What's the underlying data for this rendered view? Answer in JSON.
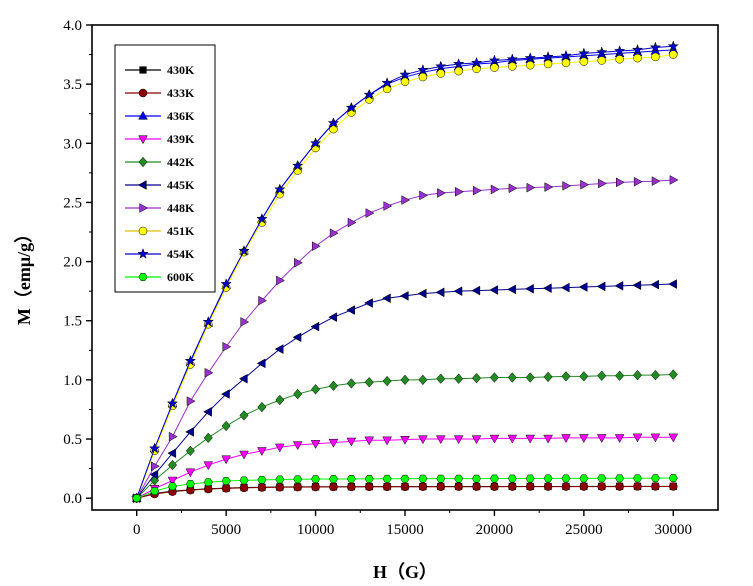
{
  "chart_data": {
    "type": "line",
    "title": "",
    "xlabel": "H（G）",
    "ylabel": "M（emμ/g）",
    "xlim": [
      -2500,
      32500
    ],
    "ylim": [
      -0.1,
      4.0
    ],
    "xticks": [
      0,
      5000,
      10000,
      15000,
      20000,
      25000,
      30000
    ],
    "xtick_labels": [
      "0",
      "5000",
      "10000",
      "15000",
      "20000",
      "25000",
      "30000"
    ],
    "yticks": [
      0.0,
      0.5,
      1.0,
      1.5,
      2.0,
      2.5,
      3.0,
      3.5,
      4.0
    ],
    "ytick_labels": [
      "0.0",
      "0.5",
      "1.0",
      "1.5",
      "2.0",
      "2.5",
      "3.0",
      "3.5",
      "4.0"
    ],
    "grid": false,
    "legend_position": "top-left",
    "x": [
      0,
      1000,
      2000,
      3000,
      4000,
      5000,
      6000,
      7000,
      8000,
      9000,
      10000,
      11000,
      12000,
      13000,
      14000,
      15000,
      16000,
      17000,
      18000,
      19000,
      20000,
      21000,
      22000,
      23000,
      24000,
      25000,
      26000,
      27000,
      28000,
      29000,
      30000
    ],
    "series": [
      {
        "name": "430K",
        "color": "#000000",
        "marker": "square",
        "values": [
          0,
          0.04,
          0.06,
          0.07,
          0.08,
          0.085,
          0.09,
          0.092,
          0.094,
          0.095,
          0.096,
          0.097,
          0.097,
          0.098,
          0.098,
          0.098,
          0.098,
          0.099,
          0.099,
          0.099,
          0.099,
          0.099,
          0.099,
          0.099,
          0.099,
          0.1,
          0.1,
          0.1,
          0.1,
          0.1,
          0.1
        ]
      },
      {
        "name": "433K",
        "color": "#8b0000",
        "marker": "circle",
        "values": [
          0,
          0.035,
          0.055,
          0.068,
          0.077,
          0.083,
          0.087,
          0.09,
          0.092,
          0.093,
          0.094,
          0.095,
          0.095,
          0.096,
          0.096,
          0.096,
          0.097,
          0.097,
          0.097,
          0.097,
          0.097,
          0.098,
          0.098,
          0.098,
          0.098,
          0.098,
          0.098,
          0.098,
          0.099,
          0.099,
          0.099
        ]
      },
      {
        "name": "436K",
        "color": "#0000ff",
        "marker": "triangle-up",
        "values": [
          0,
          0.42,
          0.8,
          1.15,
          1.48,
          1.8,
          2.09,
          2.36,
          2.61,
          2.81,
          3.0,
          3.17,
          3.3,
          3.41,
          3.5,
          3.56,
          3.6,
          3.63,
          3.65,
          3.67,
          3.68,
          3.7,
          3.71,
          3.72,
          3.73,
          3.74,
          3.75,
          3.76,
          3.77,
          3.78,
          3.79
        ]
      },
      {
        "name": "439K",
        "color": "#ff00ff",
        "marker": "triangle-down",
        "values": [
          0,
          0.08,
          0.15,
          0.22,
          0.28,
          0.33,
          0.37,
          0.4,
          0.43,
          0.45,
          0.46,
          0.47,
          0.48,
          0.49,
          0.49,
          0.495,
          0.5,
          0.5,
          0.5,
          0.5,
          0.505,
          0.505,
          0.505,
          0.505,
          0.51,
          0.51,
          0.51,
          0.51,
          0.515,
          0.515,
          0.515
        ]
      },
      {
        "name": "442K",
        "color": "#228b22",
        "marker": "diamond",
        "values": [
          0,
          0.15,
          0.28,
          0.4,
          0.51,
          0.61,
          0.7,
          0.77,
          0.83,
          0.88,
          0.92,
          0.95,
          0.97,
          0.98,
          0.99,
          1.0,
          1.0,
          1.01,
          1.01,
          1.015,
          1.02,
          1.02,
          1.02,
          1.025,
          1.03,
          1.03,
          1.035,
          1.035,
          1.04,
          1.04,
          1.045
        ]
      },
      {
        "name": "445K",
        "color": "#00008b",
        "marker": "triangle-left",
        "values": [
          0,
          0.2,
          0.38,
          0.56,
          0.73,
          0.88,
          1.01,
          1.14,
          1.26,
          1.36,
          1.45,
          1.53,
          1.59,
          1.65,
          1.69,
          1.71,
          1.73,
          1.74,
          1.75,
          1.755,
          1.76,
          1.765,
          1.77,
          1.775,
          1.78,
          1.785,
          1.79,
          1.795,
          1.8,
          1.805,
          1.81
        ]
      },
      {
        "name": "448K",
        "color": "#9932cc",
        "marker": "triangle-right",
        "values": [
          0,
          0.27,
          0.52,
          0.82,
          1.06,
          1.28,
          1.49,
          1.67,
          1.84,
          1.99,
          2.13,
          2.24,
          2.33,
          2.41,
          2.47,
          2.52,
          2.56,
          2.58,
          2.59,
          2.6,
          2.61,
          2.62,
          2.625,
          2.63,
          2.64,
          2.65,
          2.66,
          2.67,
          2.675,
          2.68,
          2.69
        ]
      },
      {
        "name": "451K",
        "color": "#ffff00",
        "marker": "circle",
        "values": [
          0,
          0.4,
          0.78,
          1.13,
          1.47,
          1.78,
          2.08,
          2.33,
          2.57,
          2.77,
          2.96,
          3.12,
          3.26,
          3.37,
          3.46,
          3.52,
          3.56,
          3.59,
          3.61,
          3.63,
          3.64,
          3.65,
          3.66,
          3.67,
          3.68,
          3.69,
          3.7,
          3.71,
          3.72,
          3.73,
          3.75
        ]
      },
      {
        "name": "454K",
        "color": "#0000cd",
        "marker": "star",
        "values": [
          0,
          0.42,
          0.8,
          1.16,
          1.49,
          1.81,
          2.09,
          2.36,
          2.61,
          2.81,
          3.0,
          3.17,
          3.3,
          3.41,
          3.51,
          3.58,
          3.62,
          3.65,
          3.67,
          3.68,
          3.7,
          3.71,
          3.72,
          3.73,
          3.74,
          3.76,
          3.77,
          3.78,
          3.79,
          3.81,
          3.82
        ]
      },
      {
        "name": "600K",
        "color": "#00ff00",
        "marker": "hexagon",
        "values": [
          0,
          0.06,
          0.1,
          0.12,
          0.135,
          0.145,
          0.15,
          0.155,
          0.158,
          0.16,
          0.161,
          0.162,
          0.163,
          0.163,
          0.164,
          0.164,
          0.165,
          0.165,
          0.165,
          0.165,
          0.166,
          0.166,
          0.166,
          0.167,
          0.167,
          0.167,
          0.168,
          0.168,
          0.168,
          0.169,
          0.17
        ]
      }
    ]
  }
}
